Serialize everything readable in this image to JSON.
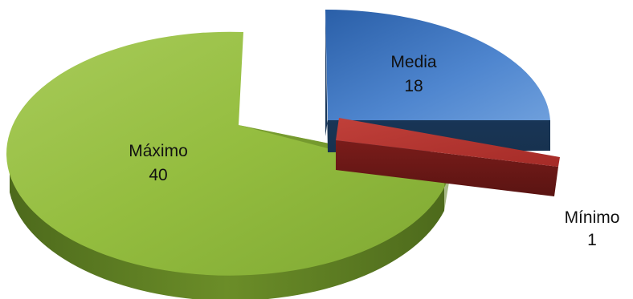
{
  "chart_data": {
    "type": "pie",
    "title": "",
    "slices": [
      {
        "label": "Media",
        "value": 18,
        "color": "#3e74bd"
      },
      {
        "label": "Mínimo",
        "value": 1,
        "color": "#b5322f"
      },
      {
        "label": "Máximo",
        "value": 40,
        "color": "#92bb3a"
      }
    ],
    "exploded": true,
    "three_d": true,
    "legend": "none",
    "show_labels": true,
    "show_values": true
  }
}
